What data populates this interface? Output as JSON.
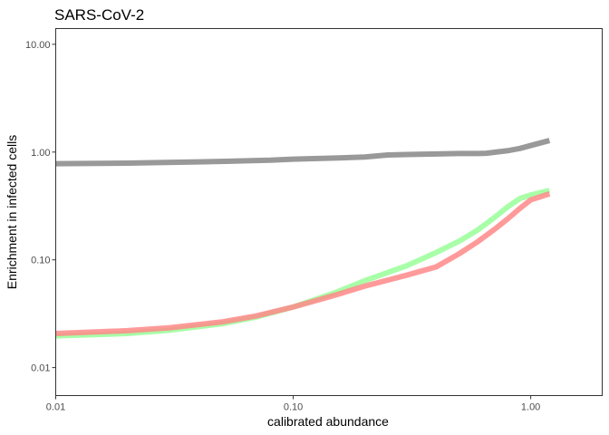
{
  "chart_data": {
    "type": "line",
    "title": "SARS-CoV-2",
    "xlabel": "calibrated abundance",
    "ylabel": "Enrichment in infected cells",
    "x_scale": "log10",
    "y_scale": "log10",
    "xlim": [
      0.01,
      2.0
    ],
    "ylim": [
      0.0055,
      14
    ],
    "x_ticks": [
      0.01,
      0.1,
      1.0
    ],
    "x_tick_labels": [
      "0.01",
      "0.10",
      "1.00"
    ],
    "y_ticks": [
      0.01,
      0.1,
      1.0,
      10.0
    ],
    "y_tick_labels": [
      "0.01",
      "0.10",
      "1.00",
      "10.00"
    ],
    "grid": false,
    "legend": "none",
    "series": [
      {
        "color": "#999999",
        "opacity": 1,
        "x": [
          0.01,
          0.02,
          0.04,
          0.08,
          0.1,
          0.15,
          0.2,
          0.25,
          0.3,
          0.4,
          0.5,
          0.6,
          0.65,
          0.8,
          0.9,
          1.0,
          1.2
        ],
        "y": [
          0.78,
          0.79,
          0.81,
          0.84,
          0.86,
          0.88,
          0.9,
          0.94,
          0.95,
          0.96,
          0.97,
          0.97,
          0.975,
          1.03,
          1.08,
          1.15,
          1.28
        ]
      },
      {
        "color": "#99FF99",
        "opacity": 0.85,
        "x": [
          0.01,
          0.02,
          0.03,
          0.05,
          0.07,
          0.1,
          0.15,
          0.2,
          0.3,
          0.4,
          0.5,
          0.6,
          0.7,
          0.8,
          0.9,
          1.0,
          1.2
        ],
        "y": [
          0.0197,
          0.0207,
          0.0222,
          0.0255,
          0.0295,
          0.0365,
          0.0495,
          0.064,
          0.088,
          0.117,
          0.149,
          0.19,
          0.245,
          0.31,
          0.37,
          0.4,
          0.44
        ]
      },
      {
        "color": "#FF8888",
        "opacity": 0.85,
        "x": [
          0.01,
          0.02,
          0.03,
          0.05,
          0.07,
          0.1,
          0.15,
          0.2,
          0.3,
          0.4,
          0.5,
          0.6,
          0.7,
          0.8,
          0.9,
          1.0,
          1.2
        ],
        "y": [
          0.0207,
          0.022,
          0.0234,
          0.0265,
          0.0302,
          0.0365,
          0.047,
          0.057,
          0.072,
          0.086,
          0.114,
          0.148,
          0.19,
          0.24,
          0.3,
          0.36,
          0.41
        ]
      }
    ]
  }
}
